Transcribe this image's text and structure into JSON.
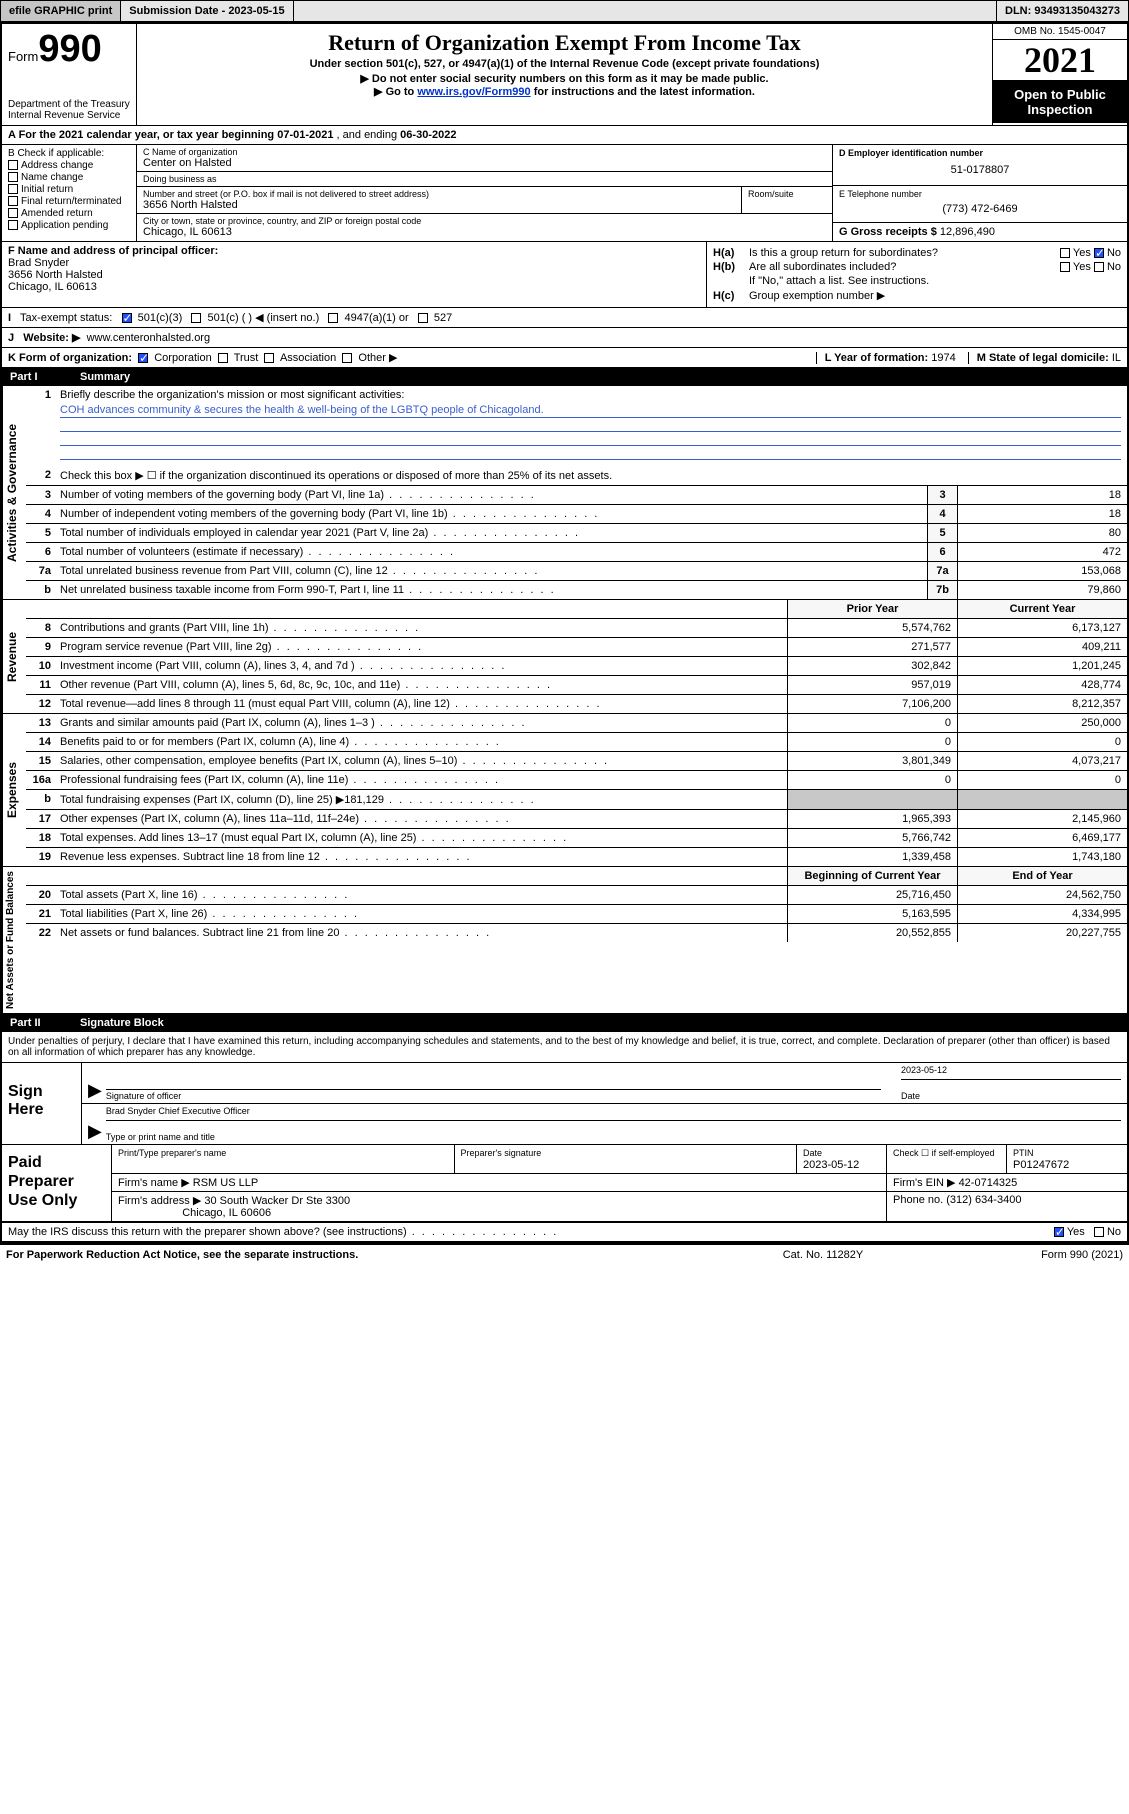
{
  "colors": {
    "topbar_bg": "#e6e6e6",
    "btn_bg": "#c6c6c6",
    "black": "#000000",
    "white": "#ffffff",
    "link": "#0033cc",
    "greyed": "#c8c8c8",
    "mission_line": "#3a5fcd",
    "check_blue": "#2050ff"
  },
  "topbar": {
    "efile_btn": "efile GRAPHIC print",
    "submission_label": "Submission Date - 2023-05-15",
    "dln_label": "DLN: 93493135043273"
  },
  "header": {
    "form_word": "Form",
    "form_num": "990",
    "dept": "Department of the Treasury\nInternal Revenue Service",
    "title": "Return of Organization Exempt From Income Tax",
    "subtitle": "Under section 501(c), 527, or 4947(a)(1) of the Internal Revenue Code (except private foundations)",
    "instr1": "▶ Do not enter social security numbers on this form as it may be made public.",
    "instr2_pre": "▶ Go to ",
    "instr2_link": "www.irs.gov/Form990",
    "instr2_post": " for instructions and the latest information.",
    "omb": "OMB No. 1545-0047",
    "year": "2021",
    "open1": "Open to Public",
    "open2": "Inspection"
  },
  "rowA": {
    "text_pre": "A For the 2021 calendar year, or tax year beginning ",
    "begin": "07-01-2021",
    "mid": " , and ending ",
    "end": "06-30-2022"
  },
  "colB": {
    "heading": "B Check if applicable:",
    "opts": [
      "Address change",
      "Name change",
      "Initial return",
      "Final return/terminated",
      "Amended return",
      "Application pending"
    ]
  },
  "colC": {
    "name_label": "C Name of organization",
    "name": "Center on Halsted",
    "dba_label": "Doing business as",
    "dba": "",
    "addr_label": "Number and street (or P.O. box if mail is not delivered to street address)",
    "room_label": "Room/suite",
    "addr": "3656 North Halsted",
    "city_label": "City or town, state or province, country, and ZIP or foreign postal code",
    "city": "Chicago, IL  60613"
  },
  "colDE": {
    "d_label": "D Employer identification number",
    "ein": "51-0178807",
    "e_label": "E Telephone number",
    "phone": "(773) 472-6469",
    "g_label": "G Gross receipts $ ",
    "gross": "12,896,490"
  },
  "secFH": {
    "f_label": "F Name and address of principal officer:",
    "f_name": "Brad Snyder",
    "f_addr1": "3656 North Halsted",
    "f_addr2": "Chicago, IL  60613",
    "ha_label": "H(a)",
    "ha_text": "Is this a group return for subordinates?",
    "hb_label": "H(b)",
    "hb_text": "Are all subordinates included?",
    "hb_note": "If \"No,\" attach a list. See instructions.",
    "hc_label": "H(c)",
    "hc_text": "Group exemption number ▶",
    "yes": "Yes",
    "no": "No"
  },
  "rowI": {
    "label": "I",
    "text": "Tax-exempt status:",
    "opts": [
      "501(c)(3)",
      "501(c) (   ) ◀ (insert no.)",
      "4947(a)(1) or",
      "527"
    ]
  },
  "rowJ": {
    "label": "J",
    "text": "Website: ▶",
    "val": "www.centeronhalsted.org"
  },
  "rowK": {
    "label": "K Form of organization:",
    "opts": [
      "Corporation",
      "Trust",
      "Association",
      "Other ▶"
    ],
    "l_label": "L Year of formation: ",
    "l_val": "1974",
    "m_label": "M State of legal domicile: ",
    "m_val": "IL"
  },
  "part1": {
    "part": "Part I",
    "title": "Summary",
    "q1_label": "1",
    "q1_text": "Briefly describe the organization's mission or most significant activities:",
    "mission": "COH advances community & secures the health & well-being of the LGBTQ people of Chicagoland.",
    "q2_label": "2",
    "q2_text": "Check this box ▶ ☐  if the organization discontinued its operations or disposed of more than 25% of its net assets.",
    "sections": {
      "gov": "Activities & Governance",
      "rev": "Revenue",
      "exp": "Expenses",
      "net": "Net Assets or Fund Balances"
    },
    "gov_rows": [
      {
        "n": "3",
        "d": "Number of voting members of the governing body (Part VI, line 1a)",
        "bn": "3",
        "v": "18"
      },
      {
        "n": "4",
        "d": "Number of independent voting members of the governing body (Part VI, line 1b)",
        "bn": "4",
        "v": "18"
      },
      {
        "n": "5",
        "d": "Total number of individuals employed in calendar year 2021 (Part V, line 2a)",
        "bn": "5",
        "v": "80"
      },
      {
        "n": "6",
        "d": "Total number of volunteers (estimate if necessary)",
        "bn": "6",
        "v": "472"
      },
      {
        "n": "7a",
        "d": "Total unrelated business revenue from Part VIII, column (C), line 12",
        "bn": "7a",
        "v": "153,068"
      },
      {
        "n": "b",
        "d": "Net unrelated business taxable income from Form 990-T, Part I, line 11",
        "bn": "7b",
        "v": "79,860"
      }
    ],
    "col_hdr_py": "Prior Year",
    "col_hdr_cy": "Current Year",
    "rev_rows": [
      {
        "n": "8",
        "d": "Contributions and grants (Part VIII, line 1h)",
        "py": "5,574,762",
        "cy": "6,173,127"
      },
      {
        "n": "9",
        "d": "Program service revenue (Part VIII, line 2g)",
        "py": "271,577",
        "cy": "409,211"
      },
      {
        "n": "10",
        "d": "Investment income (Part VIII, column (A), lines 3, 4, and 7d )",
        "py": "302,842",
        "cy": "1,201,245"
      },
      {
        "n": "11",
        "d": "Other revenue (Part VIII, column (A), lines 5, 6d, 8c, 9c, 10c, and 11e)",
        "py": "957,019",
        "cy": "428,774"
      },
      {
        "n": "12",
        "d": "Total revenue—add lines 8 through 11 (must equal Part VIII, column (A), line 12)",
        "py": "7,106,200",
        "cy": "8,212,357"
      }
    ],
    "exp_rows": [
      {
        "n": "13",
        "d": "Grants and similar amounts paid (Part IX, column (A), lines 1–3 )",
        "py": "0",
        "cy": "250,000"
      },
      {
        "n": "14",
        "d": "Benefits paid to or for members (Part IX, column (A), line 4)",
        "py": "0",
        "cy": "0"
      },
      {
        "n": "15",
        "d": "Salaries, other compensation, employee benefits (Part IX, column (A), lines 5–10)",
        "py": "3,801,349",
        "cy": "4,073,217"
      },
      {
        "n": "16a",
        "d": "Professional fundraising fees (Part IX, column (A), line 11e)",
        "py": "0",
        "cy": "0"
      },
      {
        "n": "b",
        "d": "Total fundraising expenses (Part IX, column (D), line 25) ▶181,129",
        "py": "",
        "cy": "",
        "grey": true
      },
      {
        "n": "17",
        "d": "Other expenses (Part IX, column (A), lines 11a–11d, 11f–24e)",
        "py": "1,965,393",
        "cy": "2,145,960"
      },
      {
        "n": "18",
        "d": "Total expenses. Add lines 13–17 (must equal Part IX, column (A), line 25)",
        "py": "5,766,742",
        "cy": "6,469,177"
      },
      {
        "n": "19",
        "d": "Revenue less expenses. Subtract line 18 from line 12",
        "py": "1,339,458",
        "cy": "1,743,180"
      }
    ],
    "net_hdr_py": "Beginning of Current Year",
    "net_hdr_cy": "End of Year",
    "net_rows": [
      {
        "n": "20",
        "d": "Total assets (Part X, line 16)",
        "py": "25,716,450",
        "cy": "24,562,750"
      },
      {
        "n": "21",
        "d": "Total liabilities (Part X, line 26)",
        "py": "5,163,595",
        "cy": "4,334,995"
      },
      {
        "n": "22",
        "d": "Net assets or fund balances. Subtract line 21 from line 20",
        "py": "20,552,855",
        "cy": "20,227,755"
      }
    ]
  },
  "part2": {
    "part": "Part II",
    "title": "Signature Block",
    "penalties": "Under penalties of perjury, I declare that I have examined this return, including accompanying schedules and statements, and to the best of my knowledge and belief, it is true, correct, and complete. Declaration of preparer (other than officer) is based on all information of which preparer has any knowledge.",
    "sign_here": "Sign Here",
    "sig_officer_label": "Signature of officer",
    "sig_date": "2023-05-12",
    "date_label": "Date",
    "officer_name": "Brad Snyder  Chief Executive Officer",
    "officer_name_label": "Type or print name and title",
    "paid_prep": "Paid Preparer Use Only",
    "prep_name_label": "Print/Type preparer's name",
    "prep_name": "",
    "prep_sig_label": "Preparer's signature",
    "prep_date_label": "Date",
    "prep_date": "2023-05-12",
    "self_emp_label": "Check ☐ if self-employed",
    "ptin_label": "PTIN",
    "ptin": "P01247672",
    "firm_name_label": "Firm's name    ▶",
    "firm_name": "RSM US LLP",
    "firm_ein_label": "Firm's EIN ▶",
    "firm_ein": "42-0714325",
    "firm_addr_label": "Firm's address ▶",
    "firm_addr1": "30 South Wacker Dr Ste 3300",
    "firm_addr2": "Chicago, IL  60606",
    "firm_phone_label": "Phone no. ",
    "firm_phone": "(312) 634-3400",
    "discuss": "May the IRS discuss this return with the preparer shown above? (see instructions)",
    "yes": "Yes",
    "no": "No"
  },
  "footer": {
    "l": "For Paperwork Reduction Act Notice, see the separate instructions.",
    "m": "Cat. No. 11282Y",
    "r": "Form 990 (2021)"
  }
}
